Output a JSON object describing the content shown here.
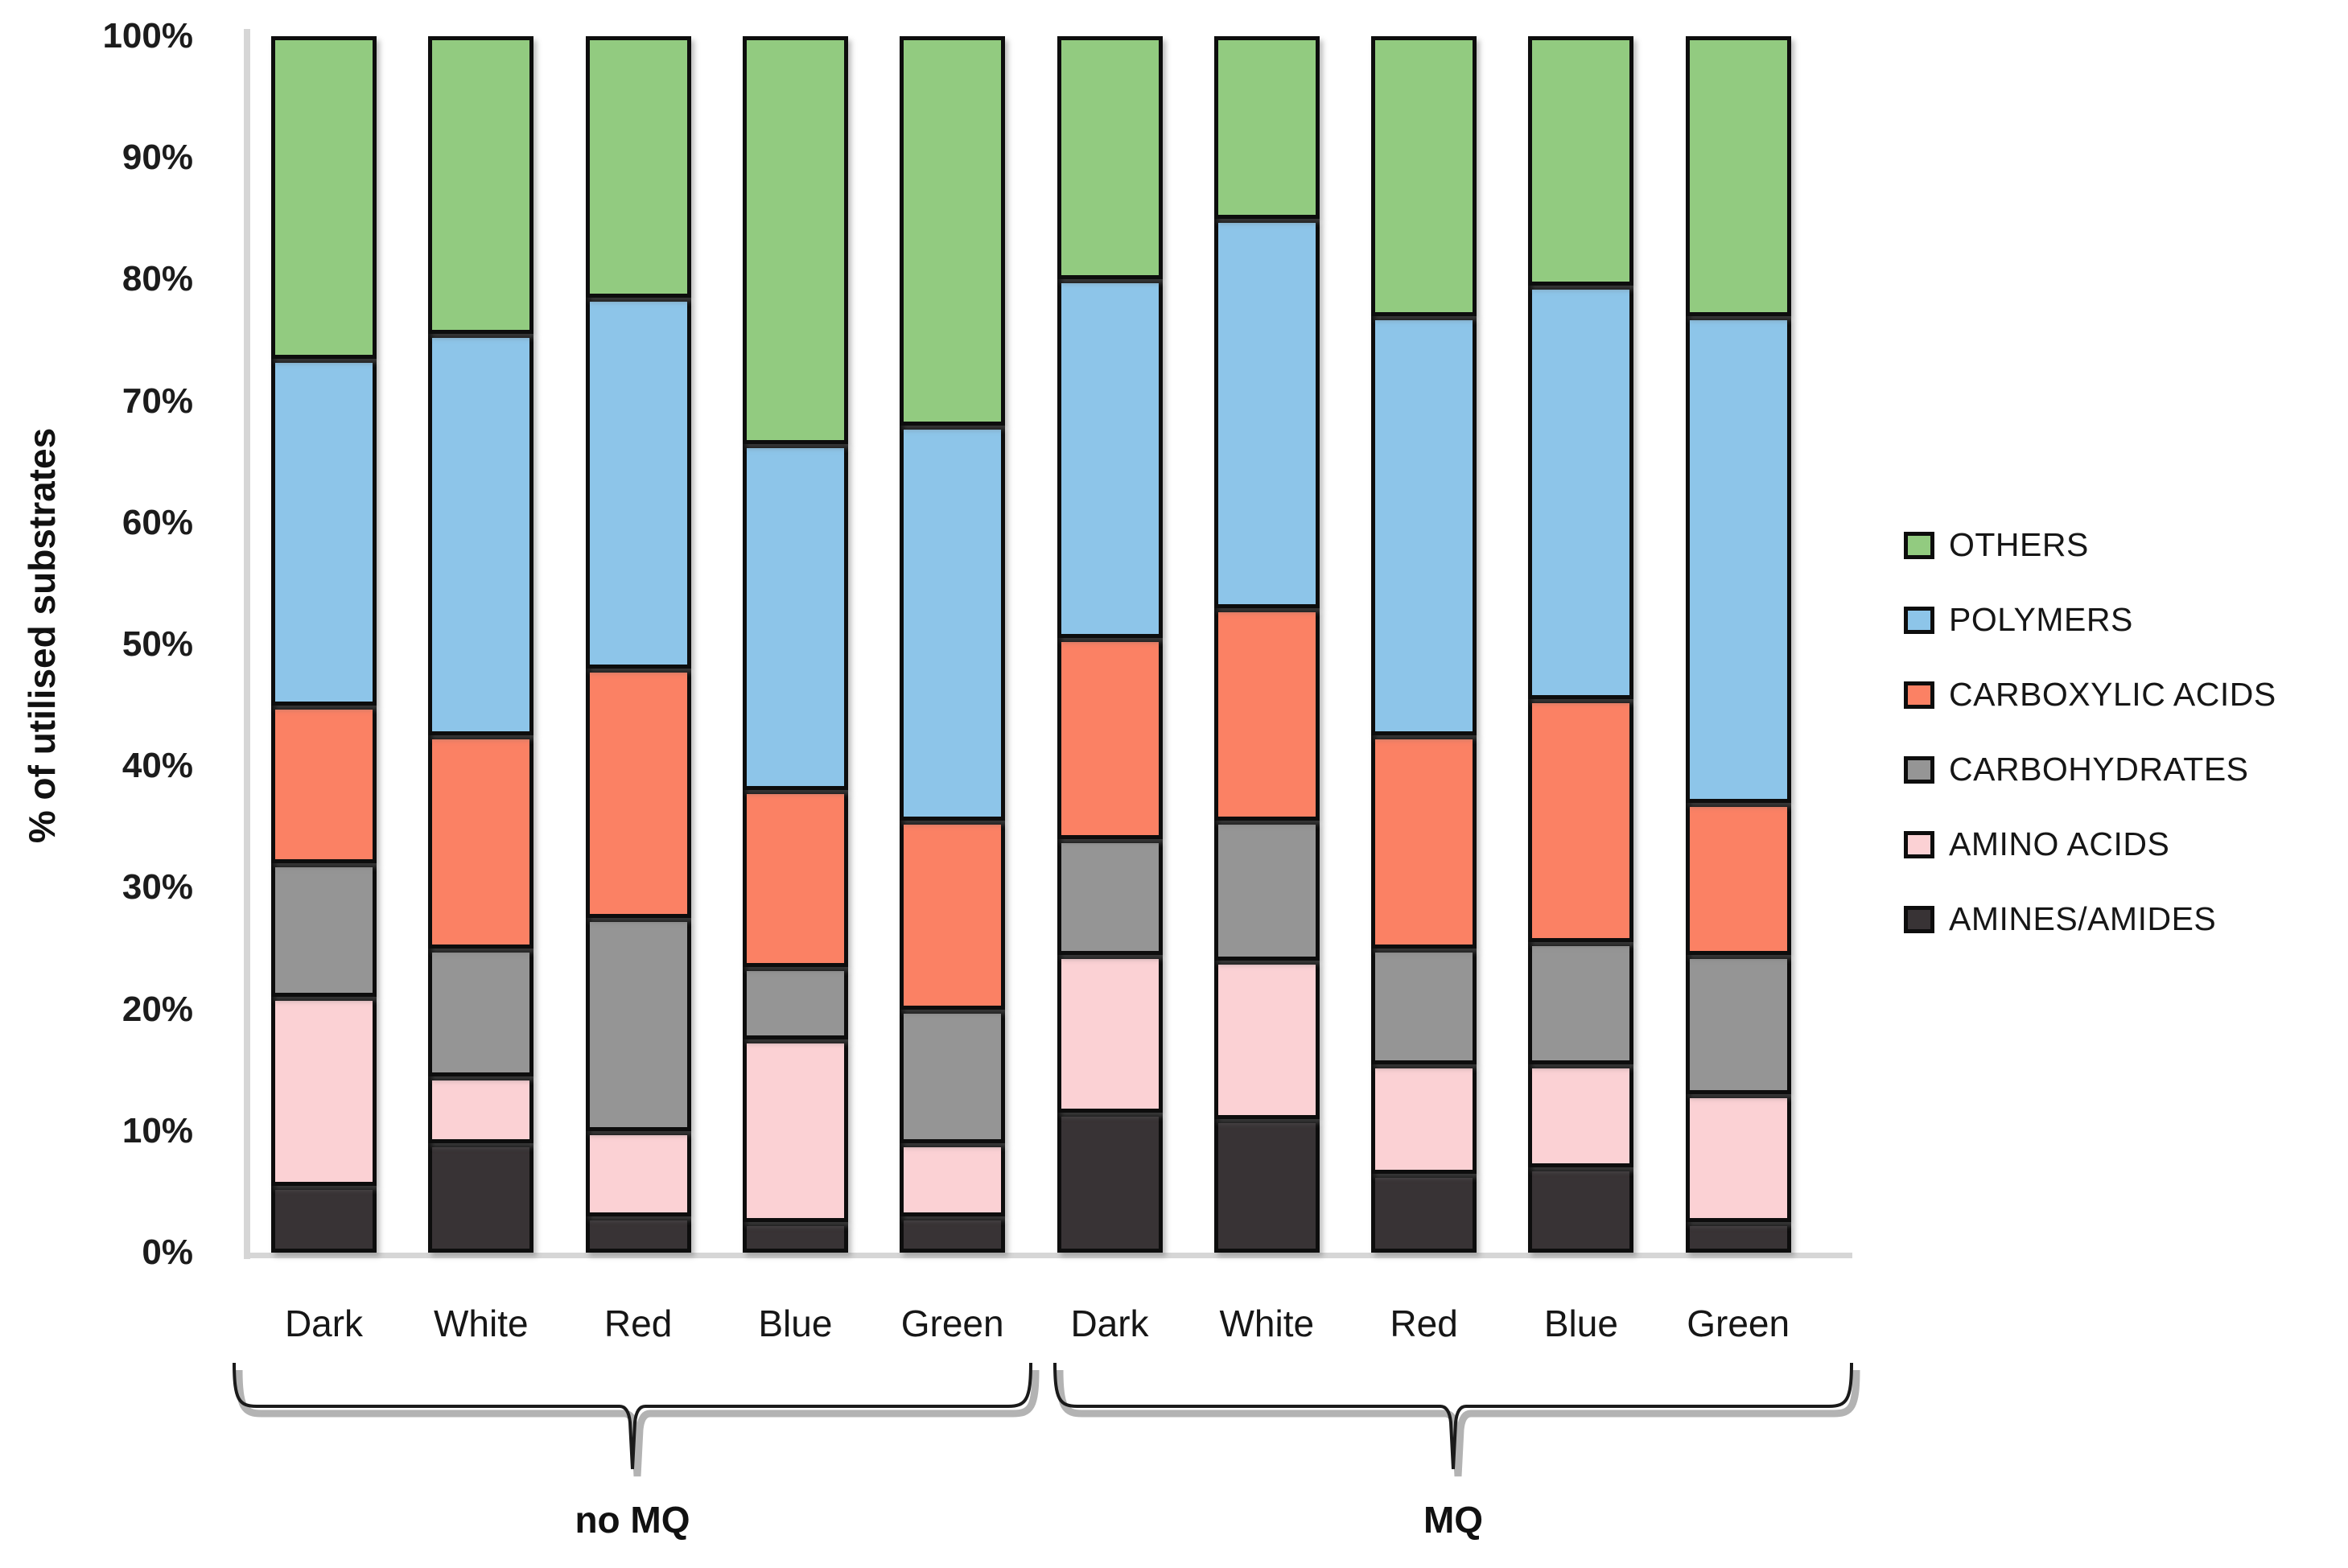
{
  "chart_data": {
    "type": "bar",
    "stacked": true,
    "percent_stacked": true,
    "title": "",
    "xlabel": "",
    "ylabel": "% of utilised substrates",
    "ylim": [
      0,
      100
    ],
    "grid": false,
    "ytick_labels": [
      "100%",
      "90%",
      "80%",
      "70%",
      "60%",
      "50%",
      "40%",
      "30%",
      "20%",
      "10%",
      "0%"
    ],
    "categories": [
      "Dark",
      "White",
      "Red",
      "Blue",
      "Green",
      "Dark",
      "White",
      "Red",
      "Blue",
      "Green"
    ],
    "groups": [
      {
        "label": "no MQ",
        "first_bar": 0,
        "last_bar": 4
      },
      {
        "label": "MQ",
        "first_bar": 5,
        "last_bar": 9
      }
    ],
    "series": [
      {
        "name": "AMINES/AMIDES",
        "color": "#383335",
        "values": [
          5.5,
          9,
          3,
          2.5,
          3,
          11.5,
          11,
          6.5,
          7,
          2.5
        ]
      },
      {
        "name": "AMINO ACIDS",
        "color": "#FBD1D4",
        "values": [
          15.5,
          5.5,
          7,
          15,
          6,
          13,
          13,
          9,
          8.5,
          10.5
        ]
      },
      {
        "name": "CARBOHYDRATES",
        "color": "#959595",
        "values": [
          11,
          10.5,
          17.5,
          6,
          11,
          9.5,
          11.5,
          9.5,
          10,
          11.5
        ]
      },
      {
        "name": "CARBOXYLIC ACIDS",
        "color": "#FB8164",
        "values": [
          13,
          17.5,
          20.5,
          14.5,
          15.5,
          16.5,
          17.5,
          17.5,
          20,
          12.5
        ]
      },
      {
        "name": "POLYMERS",
        "color": "#8DC5E9",
        "values": [
          28.5,
          33,
          30.5,
          28.5,
          32.5,
          29.5,
          32,
          34.5,
          34,
          40
        ]
      },
      {
        "name": "OTHERS",
        "color": "#92CB80",
        "values": [
          26.5,
          24.5,
          21.5,
          33.5,
          32,
          20,
          15,
          23,
          20.5,
          23
        ]
      }
    ],
    "legend": {
      "position": "right",
      "order_top_to_bottom": [
        "OTHERS",
        "POLYMERS",
        "CARBOXYLIC ACIDS",
        "CARBOHYDRATES",
        "AMINO ACIDS",
        "AMINES/AMIDES"
      ]
    },
    "style": {
      "segment_border_color": "#0d0d0d",
      "axis_line_color": "#d6d6d6",
      "text_color": "#161616",
      "background": "#ffffff"
    }
  }
}
